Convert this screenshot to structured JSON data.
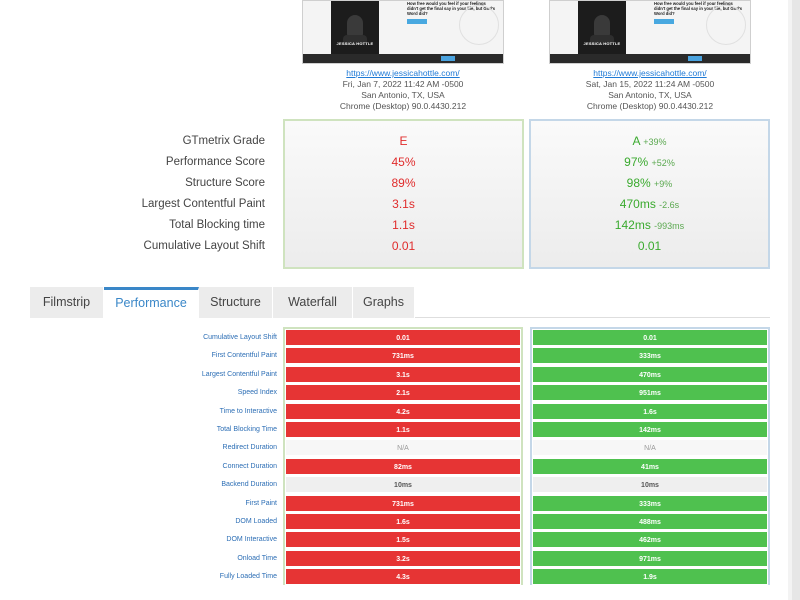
{
  "screenshots": {
    "caption": "JESSICA HOTTLE",
    "blurb": "How free would you feel if your feelings didn't get the final say in your life, but God's Word did?"
  },
  "reports": [
    {
      "url": "https://www.jessicahottle.com/",
      "date": "Fri, Jan 7, 2022 11:42 AM -0500",
      "location": "San Antonio, TX, USA",
      "browser": "Chrome (Desktop) 90.0.4430.212"
    },
    {
      "url": "https://www.jessicahottle.com/",
      "date": "Sat, Jan 15, 2022 11:24 AM -0500",
      "location": "San Antonio, TX, USA",
      "browser": "Chrome (Desktop) 90.0.4430.212"
    }
  ],
  "summary": {
    "labels": [
      "GTmetrix Grade",
      "Performance Score",
      "Structure Score",
      "Largest Contentful Paint",
      "Total Blocking time",
      "Cumulative Layout Shift"
    ],
    "left": [
      "E",
      "45%",
      "89%",
      "3.1s",
      "1.1s",
      "0.01"
    ],
    "right": [
      "A",
      "97%",
      "98%",
      "470ms",
      "142ms",
      "0.01"
    ],
    "right_deltas": [
      "+39%",
      "+52%",
      "+9%",
      "-2.6s",
      "-993ms",
      ""
    ]
  },
  "tabs": [
    "Filmstrip",
    "Performance",
    "Structure",
    "Waterfall",
    "Graphs"
  ],
  "active_tab": "Performance",
  "performance": [
    {
      "label": "Cumulative Layout Shift",
      "left": "0.01",
      "right": "0.01",
      "ls": "red",
      "rs": "green"
    },
    {
      "label": "First Contentful Paint",
      "left": "731ms",
      "right": "333ms",
      "ls": "red",
      "rs": "green"
    },
    {
      "label": "Largest Contentful Paint",
      "left": "3.1s",
      "right": "470ms",
      "ls": "red",
      "rs": "green"
    },
    {
      "label": "Speed Index",
      "left": "2.1s",
      "right": "951ms",
      "ls": "red",
      "rs": "green"
    },
    {
      "label": "Time to Interactive",
      "left": "4.2s",
      "right": "1.6s",
      "ls": "red",
      "rs": "green"
    },
    {
      "label": "Total Blocking Time",
      "left": "1.1s",
      "right": "142ms",
      "ls": "red",
      "rs": "green"
    },
    {
      "label": "Redirect Duration",
      "left": "N/A",
      "right": "N/A",
      "ls": "na",
      "rs": "na"
    },
    {
      "label": "Connect Duration",
      "left": "82ms",
      "right": "41ms",
      "ls": "red",
      "rs": "green"
    },
    {
      "label": "Backend Duration",
      "left": "10ms",
      "right": "10ms",
      "ls": "gray",
      "rs": "gray"
    },
    {
      "label": "First Paint",
      "left": "731ms",
      "right": "333ms",
      "ls": "red",
      "rs": "green"
    },
    {
      "label": "DOM Loaded",
      "left": "1.6s",
      "right": "488ms",
      "ls": "red",
      "rs": "green"
    },
    {
      "label": "DOM Interactive",
      "left": "1.5s",
      "right": "462ms",
      "ls": "red",
      "rs": "green"
    },
    {
      "label": "Onload Time",
      "left": "3.2s",
      "right": "971ms",
      "ls": "red",
      "rs": "green"
    },
    {
      "label": "Fully Loaded Time",
      "left": "4.3s",
      "right": "1.9s",
      "ls": "red",
      "rs": "green"
    }
  ],
  "colors": {
    "bad": "#e63434",
    "good": "#4fc14f",
    "accent": "#3a87c8"
  }
}
